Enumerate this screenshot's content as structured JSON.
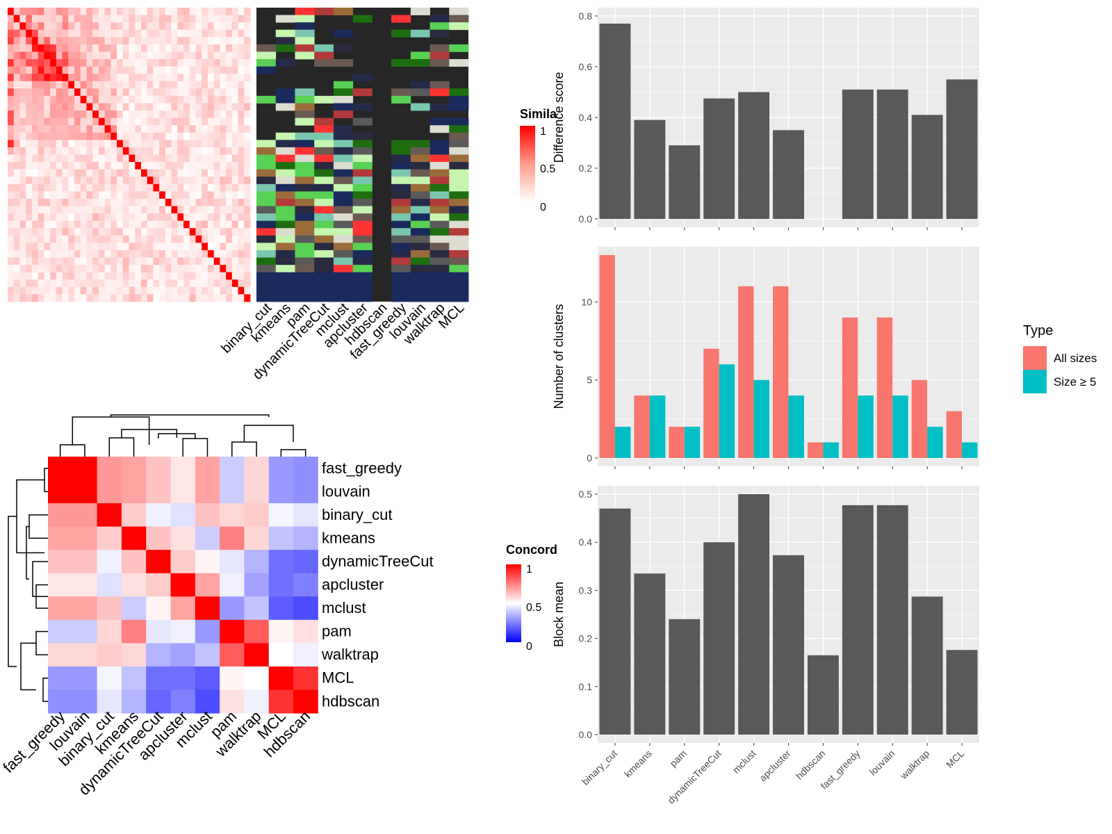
{
  "legends": {
    "similarity_title": "Simila",
    "similarity_ticks": [
      "1",
      "0.5",
      "0"
    ],
    "concordance_title": "Concord",
    "concordance_ticks": [
      "1",
      "0.5",
      "0"
    ],
    "type_title": "Type"
  },
  "colors": {
    "bar_gray": "#595959",
    "panel_bg": "#ebebeb",
    "grid": "#ffffff",
    "all_sizes": "#f8766d",
    "size_ge5": "#00bfc4",
    "heat_red": "#ff0000",
    "heat_blue": "#0000ff",
    "dark_bg": "#262626"
  },
  "chart_data": [
    {
      "type": "heatmap",
      "id": "similarity_matrix",
      "title": "",
      "scale": [
        0,
        1
      ],
      "palette": [
        "#ffffff",
        "#ff0000"
      ],
      "n": 40,
      "notes": "sample-by-sample similarity heatmap with red diagonal"
    },
    {
      "type": "heatmap",
      "id": "cluster_assignment",
      "columns": [
        "binary_cut",
        "kmeans",
        "pam",
        "dynamicTreeCut",
        "mclust",
        "apcluster",
        "hdbscan",
        "fast_greedy",
        "louvain",
        "walktrap",
        "MCL"
      ],
      "notes": "categorical cluster labels per sample for each method"
    },
    {
      "type": "heatmap",
      "id": "concordance",
      "title": "",
      "rows": [
        "fast_greedy",
        "louvain",
        "binary_cut",
        "kmeans",
        "dynamicTreeCut",
        "apcluster",
        "mclust",
        "pam",
        "walktrap",
        "MCL",
        "hdbscan"
      ],
      "columns": [
        "fast_greedy",
        "louvain",
        "binary_cut",
        "kmeans",
        "dynamicTreeCut",
        "apcluster",
        "mclust",
        "pam",
        "walktrap",
        "MCL",
        "hdbscan"
      ],
      "values": [
        [
          1.0,
          1.0,
          0.7,
          0.68,
          0.62,
          0.55,
          0.68,
          0.4,
          0.58,
          0.3,
          0.28
        ],
        [
          1.0,
          1.0,
          0.7,
          0.68,
          0.62,
          0.55,
          0.68,
          0.4,
          0.58,
          0.3,
          0.28
        ],
        [
          0.7,
          0.7,
          1.0,
          0.6,
          0.47,
          0.44,
          0.62,
          0.58,
          0.6,
          0.48,
          0.45
        ],
        [
          0.68,
          0.68,
          0.6,
          1.0,
          0.62,
          0.56,
          0.4,
          0.75,
          0.58,
          0.38,
          0.35
        ],
        [
          0.62,
          0.62,
          0.47,
          0.62,
          1.0,
          0.6,
          0.52,
          0.45,
          0.35,
          0.22,
          0.2
        ],
        [
          0.55,
          0.55,
          0.44,
          0.56,
          0.6,
          1.0,
          0.68,
          0.47,
          0.32,
          0.22,
          0.25
        ],
        [
          0.68,
          0.68,
          0.62,
          0.4,
          0.52,
          0.68,
          1.0,
          0.3,
          0.38,
          0.18,
          0.15
        ],
        [
          0.4,
          0.4,
          0.58,
          0.75,
          0.45,
          0.47,
          0.3,
          1.0,
          0.82,
          0.52,
          0.56
        ],
        [
          0.58,
          0.58,
          0.6,
          0.58,
          0.35,
          0.32,
          0.38,
          0.82,
          1.0,
          0.5,
          0.47
        ],
        [
          0.3,
          0.3,
          0.48,
          0.38,
          0.22,
          0.22,
          0.18,
          0.52,
          0.5,
          1.0,
          0.9
        ],
        [
          0.28,
          0.28,
          0.45,
          0.35,
          0.2,
          0.25,
          0.15,
          0.56,
          0.47,
          0.9,
          1.0
        ]
      ],
      "scale": [
        0,
        1
      ],
      "palette": [
        "#0000ff",
        "#ffffff",
        "#ff0000"
      ]
    },
    {
      "type": "bar",
      "id": "difference_score",
      "categories": [
        "binary_cut",
        "kmeans",
        "pam",
        "dynamicTreeCut",
        "mclust",
        "apcluster",
        "hdbscan",
        "fast_greedy",
        "louvain",
        "walktrap",
        "MCL"
      ],
      "values": [
        0.77,
        0.39,
        0.29,
        0.475,
        0.5,
        0.35,
        null,
        0.51,
        0.51,
        0.41,
        0.55
      ],
      "ylabel": "Difference score",
      "ylim": [
        0,
        0.8
      ],
      "yticks": [
        "0.0",
        "0.2",
        "0.4",
        "0.6",
        "0.8"
      ],
      "grid": true
    },
    {
      "type": "bar",
      "id": "number_of_clusters",
      "categories": [
        "binary_cut",
        "kmeans",
        "pam",
        "dynamicTreeCut",
        "mclust",
        "apcluster",
        "hdbscan",
        "fast_greedy",
        "louvain",
        "walktrap",
        "MCL"
      ],
      "series": [
        {
          "name": "All sizes",
          "values": [
            13,
            4,
            2,
            7,
            11,
            11,
            1,
            9,
            9,
            5,
            3
          ]
        },
        {
          "name": "Size ≥ 5",
          "values": [
            2,
            4,
            2,
            6,
            5,
            4,
            1,
            4,
            4,
            2,
            1
          ]
        }
      ],
      "ylabel": "Number of clusters",
      "ylim": [
        0,
        13
      ],
      "yticks": [
        "0",
        "5",
        "10"
      ],
      "legend_title": "Type",
      "legend": "right",
      "grid": true
    },
    {
      "type": "bar",
      "id": "block_mean",
      "categories": [
        "binary_cut",
        "kmeans",
        "pam",
        "dynamicTreeCut",
        "mclust",
        "apcluster",
        "hdbscan",
        "fast_greedy",
        "louvain",
        "walktrap",
        "MCL"
      ],
      "values": [
        0.47,
        0.335,
        0.24,
        0.4,
        0.5,
        0.373,
        0.165,
        0.477,
        0.477,
        0.287,
        0.176
      ],
      "ylabel": "Block mean",
      "ylim": [
        0,
        0.5
      ],
      "yticks": [
        "0.0",
        "0.1",
        "0.2",
        "0.3",
        "0.4",
        "0.5"
      ],
      "grid": true
    }
  ]
}
